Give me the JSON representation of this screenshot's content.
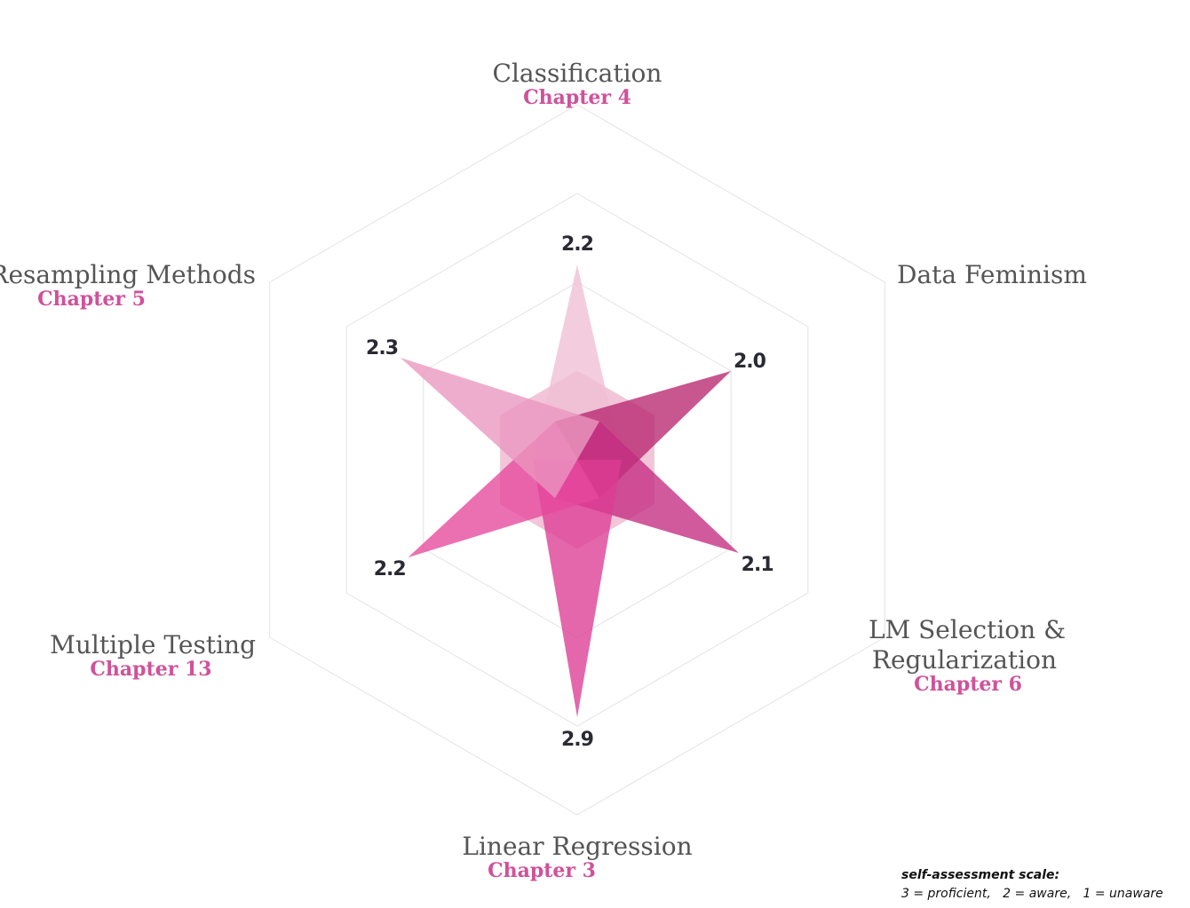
{
  "chart_data": {
    "type": "radar",
    "axes": [
      {
        "title": "Classification",
        "subtitle": "Chapter 4",
        "value": 2.2,
        "value_label": "2.2",
        "color": "#f0bfd3"
      },
      {
        "title": "Data Feminism",
        "subtitle": "",
        "value": 2.0,
        "value_label": "2.0",
        "color": "#b8266f"
      },
      {
        "title": "LM Selection &",
        "title2": "Regularization",
        "subtitle": "Chapter 6",
        "value": 2.1,
        "value_label": "2.1",
        "color": "#c42b80"
      },
      {
        "title": "Linear Regression",
        "subtitle": "Chapter 3",
        "value": 2.9,
        "value_label": "2.9",
        "color": "#dc3c93"
      },
      {
        "title": "Multiple Testing",
        "subtitle": "Chapter 13",
        "value": 2.2,
        "value_label": "2.2",
        "color": "#e5489c"
      },
      {
        "title": "Resampling Methods",
        "subtitle": "Chapter 5",
        "value": 2.3,
        "value_label": "2.3",
        "color": "#ea96bf"
      }
    ],
    "rmax": 4,
    "grid_levels": [
      1,
      2,
      3,
      4
    ],
    "grid": true
  },
  "legend": {
    "title": "self-assessment scale:",
    "items": [
      "3 = proficient,",
      "2 = aware,",
      "1 = unaware"
    ]
  }
}
